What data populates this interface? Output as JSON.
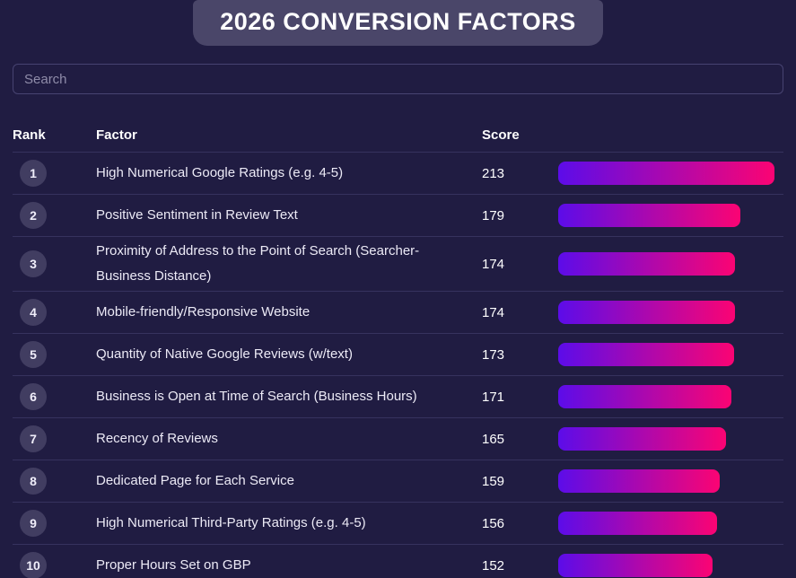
{
  "page": {
    "title": "2026 CONVERSION FACTORS"
  },
  "search": {
    "placeholder": "Search",
    "value": ""
  },
  "table": {
    "columns": {
      "rank": "Rank",
      "factor": "Factor",
      "score": "Score"
    },
    "rows": [
      {
        "rank": 1,
        "factor": "High Numerical Google Ratings (e.g. 4-5)",
        "score": 213
      },
      {
        "rank": 2,
        "factor": "Positive Sentiment in Review Text",
        "score": 179
      },
      {
        "rank": 3,
        "factor": "Proximity of Address to the Point of Search (Searcher-Business Distance)",
        "score": 174
      },
      {
        "rank": 4,
        "factor": "Mobile-friendly/Responsive Website",
        "score": 174
      },
      {
        "rank": 5,
        "factor": "Quantity of Native Google Reviews (w/text)",
        "score": 173
      },
      {
        "rank": 6,
        "factor": "Business is Open at Time of Search (Business Hours)",
        "score": 171
      },
      {
        "rank": 7,
        "factor": "Recency of Reviews",
        "score": 165
      },
      {
        "rank": 8,
        "factor": "Dedicated Page for Each Service",
        "score": 159
      },
      {
        "rank": 9,
        "factor": "High Numerical Third-Party Ratings (e.g. 4-5)",
        "score": 156
      },
      {
        "rank": 10,
        "factor": "Proper Hours Set on GBP",
        "score": 152
      }
    ]
  },
  "chart_data": {
    "type": "bar",
    "orientation": "horizontal",
    "title": "2026 CONVERSION FACTORS",
    "categories": [
      "High Numerical Google Ratings (e.g. 4-5)",
      "Positive Sentiment in Review Text",
      "Proximity of Address to the Point of Search (Searcher-Business Distance)",
      "Mobile-friendly/Responsive Website",
      "Quantity of Native Google Reviews (w/text)",
      "Business is Open at Time of Search (Business Hours)",
      "Recency of Reviews",
      "Dedicated Page for Each Service",
      "High Numerical Third-Party Ratings (e.g. 4-5)",
      "Proper Hours Set on GBP"
    ],
    "values": [
      213,
      179,
      174,
      174,
      173,
      171,
      165,
      159,
      156,
      152
    ],
    "xlabel": "Score",
    "xlim": [
      0,
      213
    ],
    "grid": false,
    "legend": false,
    "bar_gradient": [
      "#5c0ce9",
      "#fb0473"
    ]
  },
  "colors": {
    "background": "#201c42",
    "title_box": "#4a4669",
    "rank_badge": "#413d61",
    "divider": "#36325e",
    "input_border": "#474371",
    "bar_start": "#5c0ce9",
    "bar_end": "#fb0473"
  }
}
